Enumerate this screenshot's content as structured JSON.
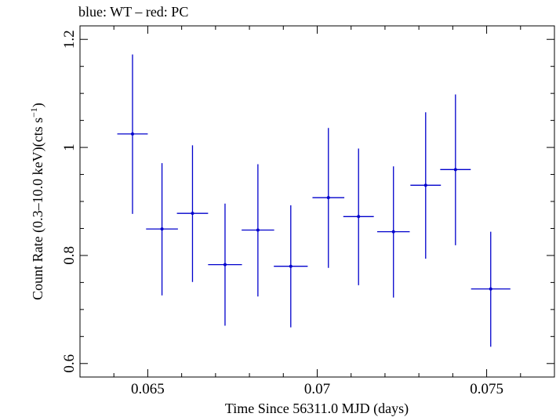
{
  "chart_data": {
    "type": "scatter",
    "title": "blue: WT – red: PC",
    "xlabel": "Time Since 56311.0 MJD (days)",
    "ylabel": "Count Rate (0.3–10.0 keV)(cts s",
    "ylabel_sup": "−1",
    "ylabel_close": ")",
    "xlim": [
      0.063,
      0.077
    ],
    "ylim": [
      0.575,
      1.225
    ],
    "x_ticks": [
      {
        "value": 0.065,
        "label": "0.065"
      },
      {
        "value": 0.07,
        "label": "0.07"
      },
      {
        "value": 0.075,
        "label": "0.075"
      }
    ],
    "y_ticks": [
      {
        "value": 0.6,
        "label": "0.6"
      },
      {
        "value": 0.8,
        "label": "0.8"
      },
      {
        "value": 1.0,
        "label": "1"
      },
      {
        "value": 1.2,
        "label": "1.2"
      }
    ],
    "series": [
      {
        "color": "#0000cc",
        "points": [
          {
            "x": 0.06455,
            "xerr": 0.00045,
            "y": 1.025,
            "yerr_low": 0.148,
            "yerr_high": 0.147
          },
          {
            "x": 0.06542,
            "xerr": 0.00047,
            "y": 0.849,
            "yerr_low": 0.123,
            "yerr_high": 0.122
          },
          {
            "x": 0.06632,
            "xerr": 0.00046,
            "y": 0.878,
            "yerr_low": 0.127,
            "yerr_high": 0.126
          },
          {
            "x": 0.06728,
            "xerr": 0.0005,
            "y": 0.783,
            "yerr_low": 0.113,
            "yerr_high": 0.113
          },
          {
            "x": 0.06825,
            "xerr": 0.00048,
            "y": 0.847,
            "yerr_low": 0.123,
            "yerr_high": 0.122
          },
          {
            "x": 0.06922,
            "xerr": 0.0005,
            "y": 0.78,
            "yerr_low": 0.113,
            "yerr_high": 0.113
          },
          {
            "x": 0.07033,
            "xerr": 0.00047,
            "y": 0.907,
            "yerr_low": 0.13,
            "yerr_high": 0.129
          },
          {
            "x": 0.07122,
            "xerr": 0.00045,
            "y": 0.872,
            "yerr_low": 0.127,
            "yerr_high": 0.126
          },
          {
            "x": 0.07225,
            "xerr": 0.00048,
            "y": 0.844,
            "yerr_low": 0.122,
            "yerr_high": 0.121
          },
          {
            "x": 0.0732,
            "xerr": 0.00045,
            "y": 0.93,
            "yerr_low": 0.136,
            "yerr_high": 0.135
          },
          {
            "x": 0.07408,
            "xerr": 0.00045,
            "y": 0.959,
            "yerr_low": 0.14,
            "yerr_high": 0.139
          },
          {
            "x": 0.07512,
            "xerr": 0.00058,
            "y": 0.738,
            "yerr_low": 0.107,
            "yerr_high": 0.106
          }
        ]
      }
    ]
  }
}
